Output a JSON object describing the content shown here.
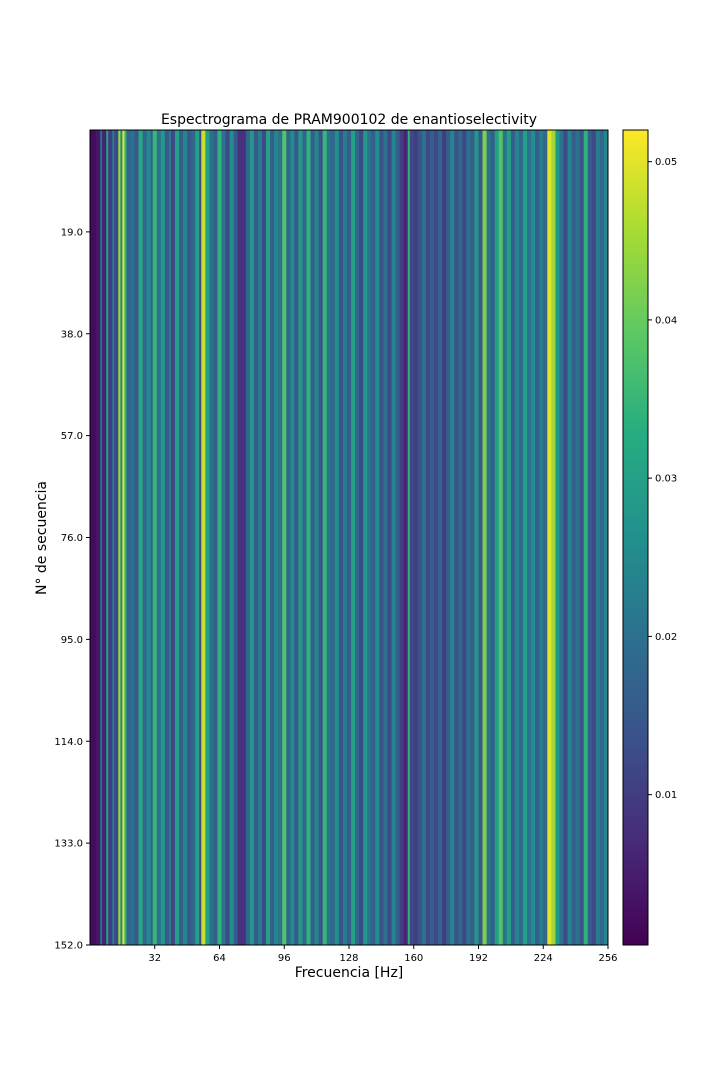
{
  "chart_data": {
    "type": "heatmap",
    "title": "Espectrograma de PRAM900102 de enantioselectivity",
    "xlabel": "Frecuencia [Hz]",
    "ylabel": "N° de secuencia",
    "xlim": [
      0,
      256
    ],
    "ylim": [
      152,
      0
    ],
    "x_ticks": [
      32,
      64,
      96,
      128,
      160,
      192,
      224,
      256
    ],
    "x_tick_labels": [
      "32",
      "64",
      "96",
      "128",
      "160",
      "192",
      "224",
      "256"
    ],
    "y_ticks": [
      19,
      38,
      57,
      76,
      95,
      114,
      133,
      152
    ],
    "y_tick_labels": [
      "19.0",
      "38.0",
      "57.0",
      "76.0",
      "95.0",
      "114.0",
      "133.0",
      "152.0"
    ],
    "colorbar": {
      "colormap": "viridis",
      "range": [
        0.0005,
        0.052
      ],
      "ticks": [
        0.01,
        0.02,
        0.03,
        0.04,
        0.05
      ],
      "tick_labels": [
        "0.01",
        "0.02",
        "0.03",
        "0.04",
        "0.05"
      ]
    },
    "column_profile": [
      [
        0,
        0.002
      ],
      [
        3,
        0.004
      ],
      [
        5,
        0.018
      ],
      [
        6,
        0.006
      ],
      [
        8,
        0.03
      ],
      [
        9,
        0.01
      ],
      [
        11,
        0.022
      ],
      [
        12,
        0.012
      ],
      [
        14,
        0.045
      ],
      [
        15,
        0.025
      ],
      [
        16,
        0.05
      ],
      [
        17,
        0.035
      ],
      [
        18,
        0.018
      ],
      [
        20,
        0.02
      ],
      [
        22,
        0.015
      ],
      [
        24,
        0.032
      ],
      [
        26,
        0.018
      ],
      [
        28,
        0.025
      ],
      [
        30,
        0.016
      ],
      [
        31,
        0.035
      ],
      [
        33,
        0.02
      ],
      [
        35,
        0.028
      ],
      [
        37,
        0.015
      ],
      [
        39,
        0.022
      ],
      [
        40,
        0.012
      ],
      [
        42,
        0.03
      ],
      [
        44,
        0.016
      ],
      [
        46,
        0.024
      ],
      [
        48,
        0.015
      ],
      [
        50,
        0.018
      ],
      [
        52,
        0.03
      ],
      [
        54,
        0.012
      ],
      [
        55,
        0.048
      ],
      [
        57,
        0.03
      ],
      [
        59,
        0.02
      ],
      [
        61,
        0.016
      ],
      [
        63,
        0.034
      ],
      [
        65,
        0.02
      ],
      [
        67,
        0.012
      ],
      [
        69,
        0.026
      ],
      [
        71,
        0.015
      ],
      [
        73,
        0.008
      ],
      [
        77,
        0.018
      ],
      [
        79,
        0.028
      ],
      [
        81,
        0.015
      ],
      [
        83,
        0.022
      ],
      [
        85,
        0.012
      ],
      [
        87,
        0.03
      ],
      [
        89,
        0.016
      ],
      [
        91,
        0.024
      ],
      [
        93,
        0.02
      ],
      [
        95,
        0.038
      ],
      [
        97,
        0.018
      ],
      [
        99,
        0.025
      ],
      [
        101,
        0.015
      ],
      [
        103,
        0.028
      ],
      [
        105,
        0.018
      ],
      [
        107,
        0.034
      ],
      [
        109,
        0.016
      ],
      [
        111,
        0.024
      ],
      [
        113,
        0.014
      ],
      [
        115,
        0.035
      ],
      [
        117,
        0.02
      ],
      [
        119,
        0.018
      ],
      [
        121,
        0.026
      ],
      [
        123,
        0.014
      ],
      [
        125,
        0.022
      ],
      [
        127,
        0.016
      ],
      [
        129,
        0.03
      ],
      [
        131,
        0.018
      ],
      [
        133,
        0.012
      ],
      [
        135,
        0.028
      ],
      [
        137,
        0.02
      ],
      [
        139,
        0.016
      ],
      [
        141,
        0.026
      ],
      [
        143,
        0.014
      ],
      [
        145,
        0.02
      ],
      [
        147,
        0.012
      ],
      [
        149,
        0.024
      ],
      [
        151,
        0.016
      ],
      [
        153,
        0.01
      ],
      [
        155,
        0.006
      ],
      [
        157,
        0.034
      ],
      [
        158,
        0.012
      ],
      [
        160,
        0.01
      ],
      [
        162,
        0.014
      ],
      [
        164,
        0.02
      ],
      [
        166,
        0.012
      ],
      [
        168,
        0.016
      ],
      [
        170,
        0.012
      ],
      [
        172,
        0.018
      ],
      [
        174,
        0.01
      ],
      [
        176,
        0.016
      ],
      [
        178,
        0.024
      ],
      [
        180,
        0.014
      ],
      [
        182,
        0.018
      ],
      [
        184,
        0.012
      ],
      [
        186,
        0.02
      ],
      [
        188,
        0.016
      ],
      [
        190,
        0.028
      ],
      [
        192,
        0.015
      ],
      [
        194,
        0.042
      ],
      [
        196,
        0.02
      ],
      [
        198,
        0.016
      ],
      [
        200,
        0.03
      ],
      [
        202,
        0.038
      ],
      [
        204,
        0.02
      ],
      [
        206,
        0.03
      ],
      [
        208,
        0.016
      ],
      [
        210,
        0.024
      ],
      [
        212,
        0.018
      ],
      [
        214,
        0.03
      ],
      [
        216,
        0.02
      ],
      [
        218,
        0.026
      ],
      [
        220,
        0.016
      ],
      [
        222,
        0.022
      ],
      [
        224,
        0.018
      ],
      [
        226,
        0.05
      ],
      [
        228,
        0.045
      ],
      [
        230,
        0.028
      ],
      [
        232,
        0.02
      ],
      [
        234,
        0.012
      ],
      [
        236,
        0.024
      ],
      [
        238,
        0.016
      ],
      [
        240,
        0.02
      ],
      [
        242,
        0.014
      ],
      [
        244,
        0.034
      ],
      [
        246,
        0.016
      ],
      [
        248,
        0.012
      ],
      [
        250,
        0.022
      ],
      [
        252,
        0.018
      ],
      [
        254,
        0.024
      ],
      [
        256,
        0.016
      ]
    ]
  }
}
